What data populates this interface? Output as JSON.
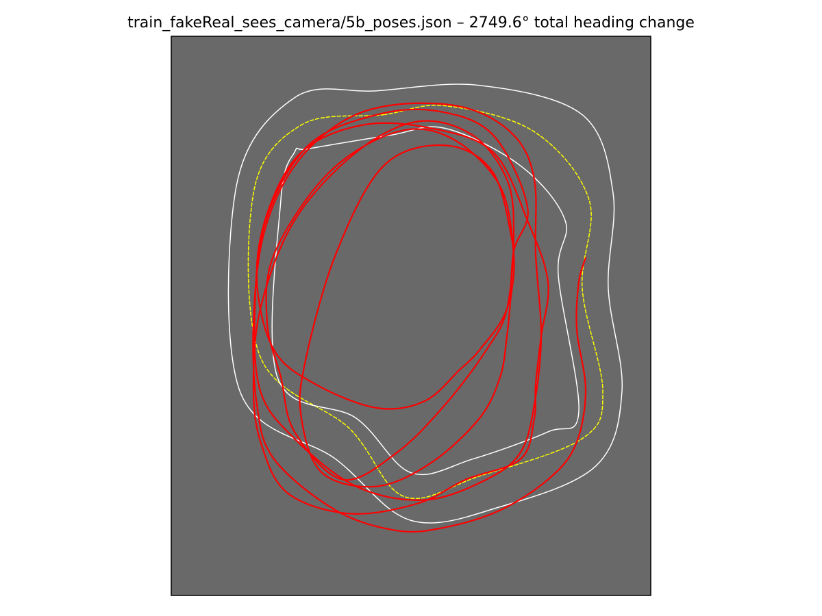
{
  "title": "train_fakeReal_sees_camera/5b_poses.json – 2749.6° total heading change",
  "colors": {
    "background": "#ffffff",
    "plot_background": "#696969",
    "track_boundary": "#ffffff",
    "centerline": "#ffff00",
    "trajectory": "#ff0000",
    "frame": "#000000"
  },
  "chart_data": {
    "type": "line",
    "title": "train_fakeReal_sees_camera/5b_poses.json – 2749.6° total heading change",
    "xlabel": "",
    "ylabel": "",
    "xlim": [
      0,
      7
    ],
    "ylim": [
      0,
      8.2
    ],
    "axes_ticks": false,
    "grid": false,
    "legend": "none",
    "series": [
      {
        "role": "outer-boundary",
        "color": "#ffffff",
        "style": "solid",
        "closed": true,
        "x": [
          3.0,
          4.5,
          6.0,
          6.45,
          6.38,
          6.58,
          6.2,
          4.8,
          3.5,
          2.4,
          1.0,
          0.95,
          1.8
        ],
        "y": [
          7.4,
          7.48,
          7.05,
          5.9,
          4.5,
          3.0,
          1.9,
          1.3,
          1.1,
          2.0,
          3.0,
          6.0,
          7.3
        ]
      },
      {
        "role": "centerline",
        "color": "#ffff00",
        "style": "dashed",
        "closed": true,
        "x": [
          3.1,
          4.0,
          5.3,
          6.1,
          6.0,
          6.3,
          6.0,
          4.5,
          3.4,
          2.6,
          1.3,
          1.2,
          1.9
        ],
        "y": [
          7.05,
          7.18,
          6.8,
          5.8,
          4.5,
          3.0,
          2.3,
          1.75,
          1.45,
          2.45,
          3.5,
          5.9,
          6.9
        ]
      },
      {
        "role": "inner-boundary",
        "color": "#ffffff",
        "style": "solid",
        "closed": true,
        "x": [
          2.0,
          3.2,
          4.0,
          5.1,
          5.75,
          5.65,
          5.95,
          5.5,
          4.4,
          3.5,
          2.7,
          1.55,
          1.6,
          1.8
        ],
        "y": [
          6.55,
          6.75,
          6.85,
          6.3,
          5.5,
          4.7,
          2.7,
          2.4,
          2.0,
          1.8,
          2.6,
          3.2,
          5.8,
          6.5
        ]
      },
      {
        "role": "trajectory",
        "color": "#ff0000",
        "style": "solid",
        "closed": false,
        "x": [
          6.05,
          5.95,
          5.92,
          6.05,
          5.9,
          5.5,
          4.8,
          4.0,
          3.3,
          2.4,
          1.5,
          1.25,
          1.2,
          1.35,
          1.8,
          2.5,
          3.3,
          4.3,
          5.0,
          5.3,
          5.32,
          5.4,
          5.3,
          5.1,
          4.6,
          3.7,
          2.7,
          1.8,
          1.3,
          1.22,
          1.38,
          2.0,
          3.0,
          3.9,
          4.7,
          5.2,
          5.0,
          4.9,
          4.5,
          4.2,
          3.7,
          3.0,
          2.1,
          1.5,
          1.25,
          1.4,
          1.9,
          2.8,
          3.8,
          4.7,
          5.2,
          5.5,
          5.4,
          5.32,
          5.3,
          5.1,
          4.3,
          3.6,
          2.6,
          1.7,
          1.32,
          1.2,
          1.3,
          1.8,
          2.7,
          3.6,
          4.4,
          4.9,
          5.0,
          4.9,
          4.6,
          4.0,
          3.3,
          2.5,
          1.8,
          1.6,
          1.4,
          1.5,
          2.3,
          3.3,
          4.1,
          4.8,
          5.0,
          4.95,
          4.9,
          4.8,
          4.5,
          3.8,
          3.0,
          2.2,
          1.9,
          1.95,
          2.4,
          3.1,
          4.0,
          4.7,
          5.0
        ],
        "y": [
          4.95,
          4.6,
          3.9,
          3.0,
          2.2,
          1.7,
          1.25,
          1.0,
          0.95,
          1.25,
          2.0,
          2.8,
          4.0,
          5.3,
          6.3,
          6.95,
          7.2,
          7.15,
          6.75,
          6.1,
          5.0,
          3.8,
          2.8,
          2.1,
          1.7,
          1.4,
          1.6,
          2.3,
          3.0,
          4.2,
          5.5,
          6.6,
          7.05,
          7.1,
          6.75,
          5.7,
          5.05,
          4.2,
          3.6,
          3.3,
          2.85,
          2.75,
          3.1,
          3.6,
          4.6,
          5.6,
          6.5,
          6.9,
          6.85,
          6.5,
          5.5,
          4.6,
          3.8,
          3.1,
          2.6,
          2.0,
          1.7,
          1.35,
          1.2,
          1.5,
          2.2,
          3.0,
          4.2,
          5.5,
          6.5,
          6.95,
          6.75,
          6.1,
          5.3,
          4.2,
          3.6,
          2.8,
          2.1,
          1.7,
          2.4,
          3.2,
          4.0,
          5.0,
          6.2,
          6.8,
          6.7,
          6.0,
          5.0,
          4.3,
          3.8,
          3.2,
          2.6,
          1.95,
          1.6,
          1.8,
          2.6,
          3.4,
          5.0,
          6.3,
          6.6,
          6.2,
          5.1
        ]
      }
    ]
  }
}
